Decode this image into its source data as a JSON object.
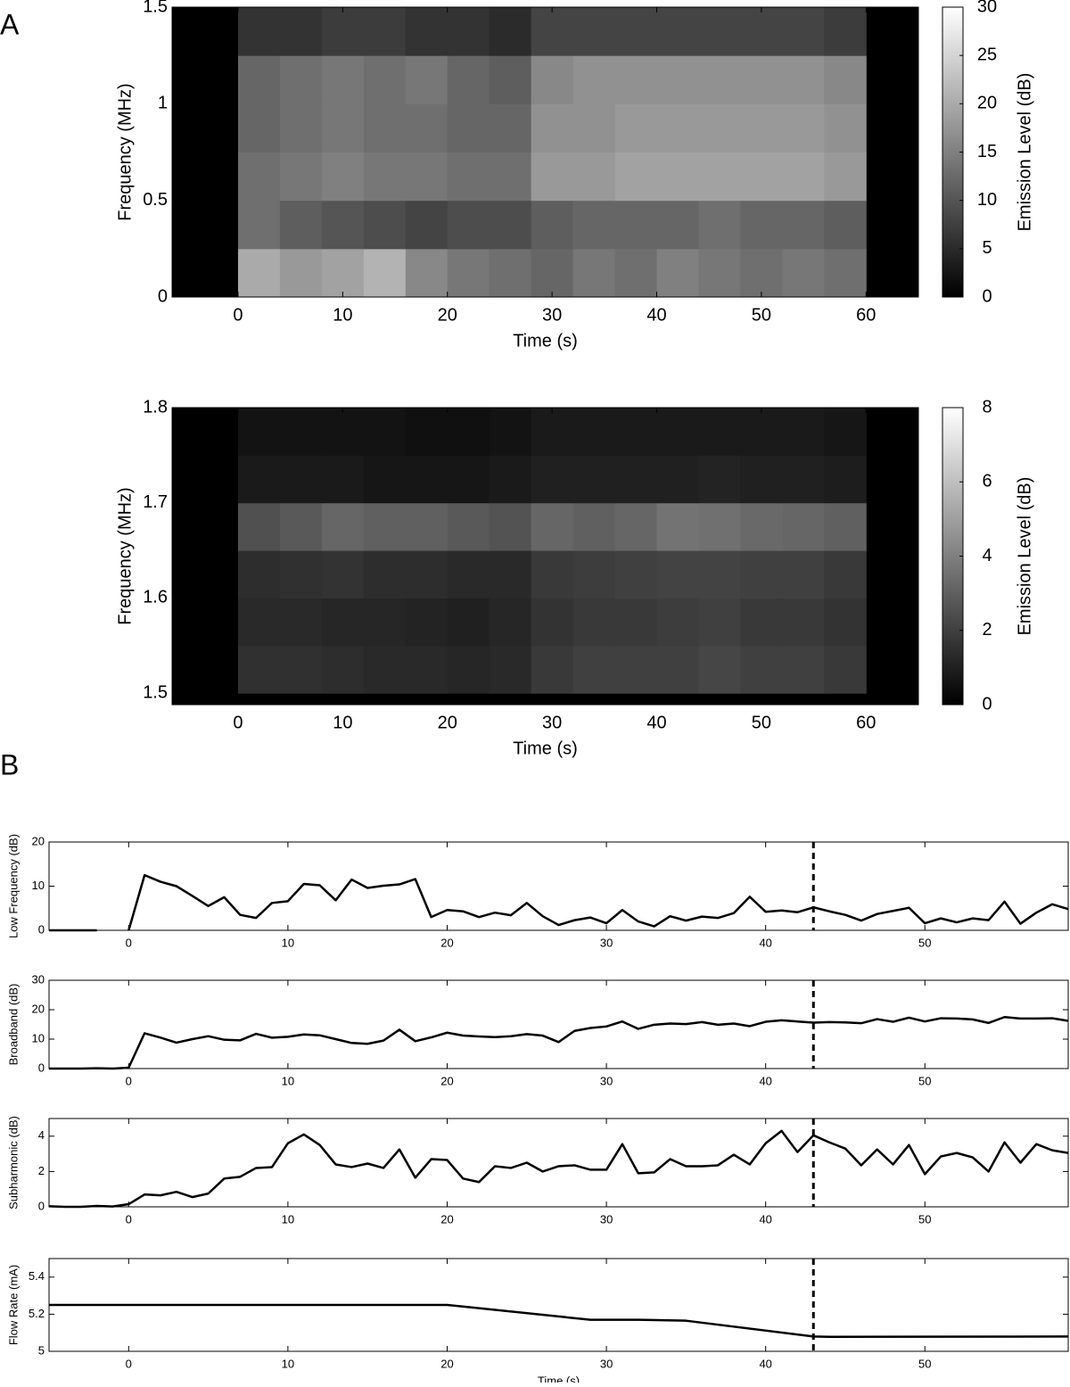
{
  "panel_labels": [
    "A",
    "B"
  ],
  "chart_data": [
    {
      "type": "heatmap",
      "xlabel": "Time (s)",
      "ylabel": "Frequency (MHz)",
      "colorbar_label": "Emission Level (dB)",
      "colormap": "gray",
      "x_edges": [
        0,
        4,
        8,
        12,
        16,
        20,
        24,
        28,
        32,
        36,
        40,
        44,
        48,
        52,
        56,
        60
      ],
      "y_edges": [
        0,
        0.25,
        0.5,
        0.75,
        1,
        1.25,
        1.5
      ],
      "values": [
        [
          20,
          18,
          19,
          21,
          16,
          14,
          13,
          12,
          14,
          13,
          15,
          14,
          13,
          14,
          13
        ],
        [
          13,
          11,
          10,
          9,
          8,
          9,
          9,
          11,
          12,
          12,
          12,
          13,
          12,
          12,
          11
        ],
        [
          13,
          14,
          15,
          14,
          14,
          13,
          13,
          18,
          18,
          19,
          19,
          19,
          19,
          19,
          18
        ],
        [
          12,
          13,
          14,
          13,
          13,
          12,
          12,
          17,
          17,
          18,
          18,
          18,
          18,
          18,
          17
        ],
        [
          12,
          13,
          14,
          13,
          14,
          12,
          11,
          16,
          17,
          17,
          17,
          17,
          17,
          17,
          16
        ],
        [
          6,
          6,
          7,
          7,
          6,
          6,
          5,
          8,
          8,
          8,
          8,
          8,
          8,
          8,
          7
        ]
      ],
      "xlim": [
        -6.3,
        65
      ],
      "xticks": [
        0,
        10,
        20,
        30,
        40,
        50,
        60
      ],
      "ylim": [
        0,
        1.5
      ],
      "yticks": [
        0,
        0.5,
        1,
        1.5
      ],
      "clim": [
        0,
        30
      ],
      "cticks": [
        0,
        5,
        10,
        15,
        20,
        25,
        30
      ]
    },
    {
      "type": "heatmap",
      "xlabel": "Time (s)",
      "ylabel": "Frequency (MHz)",
      "colorbar_label": "Emission Level (dB)",
      "colormap": "gray",
      "x_edges": [
        0,
        4,
        8,
        12,
        16,
        20,
        24,
        28,
        32,
        36,
        40,
        44,
        48,
        52,
        56,
        60
      ],
      "y_edges": [
        1.5,
        1.55,
        1.6,
        1.65,
        1.7,
        1.75,
        1.8
      ],
      "values": [
        [
          1.5,
          1.5,
          1.4,
          1.3,
          1.3,
          1.2,
          1.3,
          1.8,
          2,
          2,
          2,
          2.2,
          2,
          2,
          1.8
        ],
        [
          1.3,
          1.3,
          1.2,
          1.2,
          1.1,
          1,
          1.2,
          1.6,
          1.8,
          1.8,
          1.9,
          2,
          1.8,
          1.8,
          1.6
        ],
        [
          1.4,
          1.5,
          1.6,
          1.4,
          1.4,
          1.3,
          1.3,
          1.8,
          1.9,
          2,
          2.1,
          2.1,
          2,
          2,
          1.8
        ],
        [
          2.5,
          2.8,
          3.2,
          3,
          3,
          2.8,
          2.6,
          3.2,
          3,
          3.2,
          3.6,
          3.5,
          3.3,
          3.2,
          3
        ],
        [
          0.8,
          0.8,
          0.8,
          0.7,
          0.7,
          0.7,
          0.8,
          1,
          1,
          1,
          1,
          1.1,
          1,
          1,
          0.9
        ],
        [
          0.6,
          0.6,
          0.6,
          0.6,
          0.5,
          0.5,
          0.6,
          0.8,
          0.8,
          0.8,
          0.8,
          0.8,
          0.8,
          0.8,
          0.7
        ]
      ],
      "xlim": [
        -6.3,
        65
      ],
      "xticks": [
        0,
        10,
        20,
        30,
        40,
        50,
        60
      ],
      "ylim": [
        1.488,
        1.8
      ],
      "yticks": [
        1.5,
        1.6,
        1.7,
        1.8
      ],
      "clim": [
        0,
        8
      ],
      "cticks": [
        0,
        2,
        4,
        6,
        8
      ]
    },
    {
      "type": "line",
      "ylabel": "Low Frequency (dB)",
      "x": [
        -5,
        -4,
        -3,
        -2,
        -1,
        0,
        1,
        2,
        3,
        4,
        5,
        6,
        7,
        8,
        9,
        10,
        11,
        12,
        13,
        14,
        15,
        16,
        17,
        18,
        19,
        20,
        21,
        22,
        23,
        24,
        25,
        26,
        27,
        28,
        29,
        30,
        31,
        32,
        33,
        34,
        35,
        36,
        37,
        38,
        39,
        40,
        41,
        42,
        43,
        44,
        45,
        46,
        47,
        48,
        49,
        50,
        51,
        52,
        53,
        54,
        55,
        56,
        57,
        58,
        59
      ],
      "series": [
        {
          "color": "#000000",
          "values": [
            0,
            0,
            0,
            0,
            null,
            0,
            12.5,
            11,
            10,
            7.8,
            5.5,
            7.5,
            3.5,
            2.8,
            6.2,
            6.6,
            10.5,
            10.2,
            6.8,
            11.5,
            9.6,
            10.1,
            10.4,
            11.6,
            3,
            4.6,
            4.3,
            3,
            4,
            3.4,
            6.2,
            3.2,
            1.2,
            2.3,
            2.9,
            1.6,
            4.6,
            2,
            0.9,
            3.2,
            2.2,
            3.1,
            2.8,
            3.9,
            7.6,
            4.2,
            4.5,
            4.1,
            5.2,
            4.3,
            3.5,
            2.2,
            3.7,
            4.4,
            5.1,
            1.6,
            2.7,
            1.8,
            2.7,
            2.3,
            6.5,
            1.5,
            4,
            5.9,
            4.8
          ]
        }
      ],
      "vline": 43,
      "xlim": [
        -5,
        59
      ],
      "xticks": [
        0,
        10,
        20,
        30,
        40,
        50
      ],
      "ylim": [
        0,
        20
      ],
      "yticks": [
        0,
        10,
        20
      ]
    },
    {
      "type": "line",
      "ylabel": "Broadband (dB)",
      "x": [
        -5,
        -4,
        -3,
        -2,
        -1,
        0,
        1,
        2,
        3,
        4,
        5,
        6,
        7,
        8,
        9,
        10,
        11,
        12,
        13,
        14,
        15,
        16,
        17,
        18,
        19,
        20,
        21,
        22,
        23,
        24,
        25,
        26,
        27,
        28,
        29,
        30,
        31,
        32,
        33,
        34,
        35,
        36,
        37,
        38,
        39,
        40,
        41,
        42,
        43,
        44,
        45,
        46,
        47,
        48,
        49,
        50,
        51,
        52,
        53,
        54,
        55,
        56,
        57,
        58,
        59
      ],
      "series": [
        {
          "color": "#000000",
          "values": [
            0,
            0,
            0,
            0.1,
            0,
            0.3,
            12,
            10.5,
            8.8,
            10,
            11,
            9.8,
            9.6,
            11.8,
            10.5,
            10.8,
            11.6,
            11.3,
            10,
            8.7,
            8.4,
            9.5,
            13.2,
            9.3,
            10.6,
            12.2,
            11.2,
            10.9,
            10.7,
            11,
            11.7,
            11.2,
            9,
            12.8,
            13.8,
            14.3,
            16,
            13.5,
            14.9,
            15.3,
            15.1,
            15.8,
            14.9,
            15.3,
            14.4,
            15.9,
            16.4,
            16,
            15.6,
            15.8,
            15.7,
            15.4,
            16.8,
            15.9,
            17.3,
            16,
            17.1,
            17,
            16.7,
            15.5,
            17.5,
            17,
            17,
            17.1,
            16.2
          ]
        }
      ],
      "vline": 43,
      "xlim": [
        -5,
        59
      ],
      "xticks": [
        0,
        10,
        20,
        30,
        40,
        50
      ],
      "ylim": [
        0,
        30
      ],
      "yticks": [
        0,
        10,
        20,
        30
      ]
    },
    {
      "type": "line",
      "ylabel": "Subharmonic (dB)",
      "x": [
        -5,
        -4,
        -3,
        -2,
        -1,
        0,
        1,
        2,
        3,
        4,
        5,
        6,
        7,
        8,
        9,
        10,
        11,
        12,
        13,
        14,
        15,
        16,
        17,
        18,
        19,
        20,
        21,
        22,
        23,
        24,
        25,
        26,
        27,
        28,
        29,
        30,
        31,
        32,
        33,
        34,
        35,
        36,
        37,
        38,
        39,
        40,
        41,
        42,
        43,
        44,
        45,
        46,
        47,
        48,
        49,
        50,
        51,
        52,
        53,
        54,
        55,
        56,
        57,
        58,
        59
      ],
      "series": [
        {
          "color": "#000000",
          "values": [
            0.03,
            0,
            0,
            0.05,
            0.02,
            0.15,
            0.7,
            0.65,
            0.85,
            0.55,
            0.75,
            1.6,
            1.7,
            2.2,
            2.25,
            3.6,
            4.1,
            3.5,
            2.4,
            2.25,
            2.45,
            2.2,
            3.25,
            1.65,
            2.7,
            2.65,
            1.6,
            1.4,
            2.3,
            2.2,
            2.5,
            2,
            2.3,
            2.35,
            2.1,
            2.1,
            3.55,
            1.9,
            1.95,
            2.7,
            2.3,
            2.3,
            2.35,
            2.95,
            2.4,
            3.6,
            4.3,
            3.1,
            4.05,
            3.65,
            3.3,
            2.35,
            3.25,
            2.4,
            3.5,
            1.85,
            2.85,
            3.05,
            2.8,
            2,
            3.65,
            2.5,
            3.55,
            3.2,
            3.05
          ]
        }
      ],
      "vline": 43,
      "xlim": [
        -5,
        59
      ],
      "xticks": [
        0,
        10,
        20,
        30,
        40,
        50
      ],
      "ylim": [
        0,
        5
      ],
      "yticks": [
        0,
        2,
        4
      ]
    },
    {
      "type": "line",
      "ylabel": "Flow Rate (mA)",
      "xlabel": "Time (s)",
      "x": [
        -5,
        20,
        29,
        32,
        35,
        43,
        44,
        59
      ],
      "series": [
        {
          "color": "#000000",
          "values": [
            5.25,
            5.25,
            5.17,
            5.17,
            5.165,
            5.08,
            5.078,
            5.08
          ]
        }
      ],
      "vline": 43,
      "xlim": [
        -5,
        59
      ],
      "xticks": [
        0,
        10,
        20,
        30,
        40,
        50
      ],
      "ylim": [
        5,
        5.5
      ],
      "yticks": [
        5,
        5.2,
        5.4
      ]
    }
  ]
}
